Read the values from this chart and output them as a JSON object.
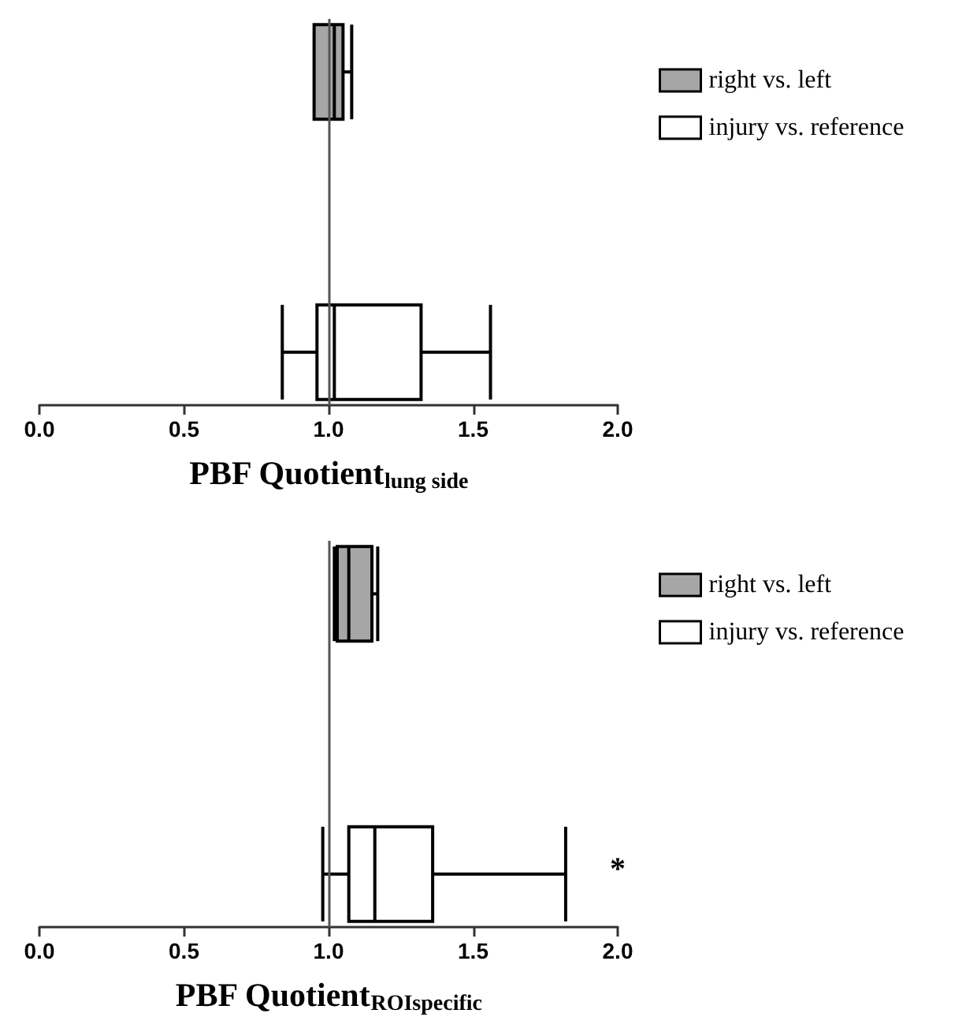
{
  "chart_data": [
    {
      "type": "box",
      "orientation": "horizontal",
      "xlabel": "PBF Quotient$_{lung side}$",
      "categories": [
        null,
        null
      ],
      "legend": "top right",
      "tick_labels": "x",
      "xlim": [
        0,
        2
      ],
      "xticks": [
        {
          "value": 0,
          "label": "0.0"
        },
        {
          "value": 0.5,
          "label": "0.5"
        },
        {
          "value": 1,
          "label": "1.0"
        },
        {
          "value": 1.5,
          "label": "1.5"
        },
        {
          "value": 2,
          "label": "2.0"
        }
      ],
      "ref_lines": [
        {
          "axis": "x",
          "value": 1,
          "color": "#555555"
        }
      ],
      "series": [
        {
          "name": "right vs. left",
          "color": "#a6a6a6",
          "boxes": [
            {
              "low": 0.95,
              "q1": 0.95,
              "median": 1.02,
              "q3": 1.05,
              "high": 1.08
            },
            null
          ]
        },
        {
          "name": "injury vs. reference",
          "color": "#ffffff",
          "boxes": [
            null,
            {
              "low": 0.84,
              "q1": 0.96,
              "median": 1.02,
              "q3": 1.32,
              "high": 1.56
            }
          ]
        }
      ]
    },
    {
      "type": "box",
      "orientation": "horizontal",
      "xlabel": "PBF Quotient$_{ROIspecific}$",
      "categories": [
        null,
        null
      ],
      "legend": "top right",
      "tick_labels": "x",
      "xlim": [
        0,
        2
      ],
      "xticks": [
        {
          "value": 0,
          "label": "0.0"
        },
        {
          "value": 0.5,
          "label": "0.5"
        },
        {
          "value": 1,
          "label": "1.0"
        },
        {
          "value": 1.5,
          "label": "1.5"
        },
        {
          "value": 2,
          "label": "2.0"
        }
      ],
      "ref_lines": [
        {
          "axis": "x",
          "value": 1,
          "color": "#555555"
        }
      ],
      "annotations": [
        "*"
      ],
      "series": [
        {
          "name": "right vs. left",
          "color": "#a6a6a6",
          "boxes": [
            {
              "low": 1.02,
              "q1": 1.03,
              "median": 1.07,
              "q3": 1.15,
              "high": 1.17
            },
            null
          ]
        },
        {
          "name": "injury vs. reference",
          "color": "#ffffff",
          "boxes": [
            null,
            {
              "low": 0.98,
              "q1": 1.07,
              "median": 1.16,
              "q3": 1.36,
              "high": 1.82
            }
          ]
        }
      ]
    }
  ]
}
